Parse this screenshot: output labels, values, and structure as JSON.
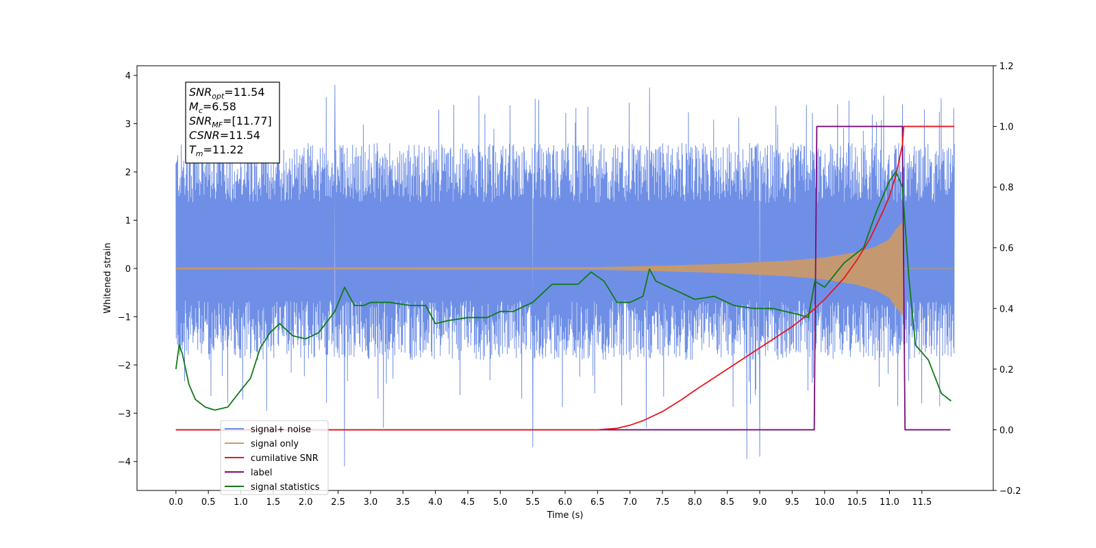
{
  "chart_data": {
    "type": "line",
    "xlabel": "Time (s)",
    "ylabel_left": "Whitened strain",
    "ylabel_right": "",
    "xlim": [
      -0.6,
      12.6
    ],
    "ylim_left": [
      -4.6,
      4.2
    ],
    "ylim_right": [
      -0.2,
      1.2
    ],
    "x_ticks": [
      "0.0",
      "0.5",
      "1.0",
      "1.5",
      "2.0",
      "2.5",
      "3.0",
      "3.5",
      "4.0",
      "4.5",
      "5.0",
      "5.5",
      "6.0",
      "6.5",
      "7.0",
      "7.5",
      "8.0",
      "8.5",
      "9.0",
      "9.5",
      "10.0",
      "10.5",
      "11.0",
      "11.5"
    ],
    "y_ticks_left": [
      "−4",
      "−3",
      "−2",
      "−1",
      "0",
      "1",
      "2",
      "3",
      "4"
    ],
    "y_ticks_right": [
      "−0.2",
      "0.0",
      "0.2",
      "0.4",
      "0.6",
      "0.8",
      "1.0",
      "1.2"
    ],
    "grid": false,
    "legend_placement": "lower-left",
    "annotation": {
      "lines": [
        {
          "main": "SNR",
          "sub": "opt",
          "value": "=11.54"
        },
        {
          "main": "M",
          "sub": "c",
          "value": "=6.58"
        },
        {
          "main": "SNR",
          "sub": "MF",
          "value": "=[11.77]"
        },
        {
          "main": "CSNR",
          "sub": "",
          "value": "=11.54"
        },
        {
          "main": "T",
          "sub": "m",
          "value": "=11.22"
        }
      ]
    },
    "series": [
      {
        "name": "signal+ noise",
        "axis": "left",
        "color": "#6f8fe6",
        "kind": "noise",
        "x_range": [
          0.0,
          12.0
        ],
        "typical_range": [
          -1.9,
          2.6
        ],
        "peaks": [
          [
            2.45,
            3.8
          ],
          [
            7.3,
            3.75
          ],
          [
            6.35,
            3.35
          ],
          [
            10.2,
            3.4
          ],
          [
            11.2,
            3.4
          ],
          [
            2.6,
            -4.1
          ],
          [
            8.8,
            -3.95
          ],
          [
            9.0,
            -3.9
          ],
          [
            5.5,
            -3.7
          ],
          [
            1.4,
            -2.95
          ],
          [
            3.2,
            -3.3
          ],
          [
            7.25,
            -3.3
          ]
        ]
      },
      {
        "name": "signal only",
        "axis": "left",
        "color": "#c89a6a",
        "x_range": [
          0.0,
          12.0
        ],
        "envelope": [
          [
            0.0,
            0.01
          ],
          [
            6.5,
            0.02
          ],
          [
            7.5,
            0.05
          ],
          [
            8.5,
            0.09
          ],
          [
            9.5,
            0.16
          ],
          [
            10.0,
            0.22
          ],
          [
            10.5,
            0.33
          ],
          [
            10.8,
            0.45
          ],
          [
            11.0,
            0.6
          ],
          [
            11.1,
            0.8
          ],
          [
            11.2,
            0.95
          ],
          [
            11.22,
            0.0
          ],
          [
            12.0,
            0.0
          ]
        ]
      },
      {
        "name": "cumilative SNR",
        "axis": "right",
        "color": "#e8141b",
        "points": [
          [
            0.0,
            0.0
          ],
          [
            6.5,
            0.0
          ],
          [
            6.8,
            0.005
          ],
          [
            7.0,
            0.015
          ],
          [
            7.2,
            0.03
          ],
          [
            7.5,
            0.06
          ],
          [
            7.8,
            0.1
          ],
          [
            8.0,
            0.13
          ],
          [
            8.5,
            0.2
          ],
          [
            9.0,
            0.27
          ],
          [
            9.5,
            0.34
          ],
          [
            9.8,
            0.39
          ],
          [
            10.0,
            0.43
          ],
          [
            10.3,
            0.5
          ],
          [
            10.5,
            0.56
          ],
          [
            10.7,
            0.63
          ],
          [
            10.9,
            0.72
          ],
          [
            11.0,
            0.77
          ],
          [
            11.1,
            0.84
          ],
          [
            11.2,
            0.94
          ],
          [
            11.22,
            1.0
          ],
          [
            12.0,
            1.0
          ]
        ]
      },
      {
        "name": "label",
        "axis": "right",
        "color": "#7a0a78",
        "points": [
          [
            0.0,
            0.0
          ],
          [
            9.84,
            0.0
          ],
          [
            9.88,
            1.0
          ],
          [
            11.2,
            1.0
          ],
          [
            11.24,
            0.0
          ],
          [
            11.94,
            0.0
          ]
        ]
      },
      {
        "name": "signal statistics",
        "axis": "right",
        "color": "#0e7a14",
        "points": [
          [
            0.0,
            0.2
          ],
          [
            0.05,
            0.28
          ],
          [
            0.1,
            0.25
          ],
          [
            0.2,
            0.15
          ],
          [
            0.3,
            0.1
          ],
          [
            0.45,
            0.075
          ],
          [
            0.6,
            0.065
          ],
          [
            0.8,
            0.075
          ],
          [
            1.0,
            0.13
          ],
          [
            1.15,
            0.17
          ],
          [
            1.3,
            0.27
          ],
          [
            1.45,
            0.32
          ],
          [
            1.6,
            0.35
          ],
          [
            1.8,
            0.31
          ],
          [
            2.0,
            0.3
          ],
          [
            2.2,
            0.32
          ],
          [
            2.45,
            0.39
          ],
          [
            2.6,
            0.47
          ],
          [
            2.75,
            0.41
          ],
          [
            2.9,
            0.41
          ],
          [
            3.0,
            0.42
          ],
          [
            3.3,
            0.42
          ],
          [
            3.6,
            0.41
          ],
          [
            3.85,
            0.41
          ],
          [
            4.0,
            0.35
          ],
          [
            4.2,
            0.36
          ],
          [
            4.5,
            0.37
          ],
          [
            4.8,
            0.37
          ],
          [
            5.0,
            0.39
          ],
          [
            5.2,
            0.39
          ],
          [
            5.5,
            0.42
          ],
          [
            5.8,
            0.48
          ],
          [
            6.0,
            0.48
          ],
          [
            6.2,
            0.48
          ],
          [
            6.4,
            0.52
          ],
          [
            6.6,
            0.49
          ],
          [
            6.8,
            0.42
          ],
          [
            7.0,
            0.42
          ],
          [
            7.2,
            0.44
          ],
          [
            7.3,
            0.53
          ],
          [
            7.4,
            0.49
          ],
          [
            7.7,
            0.46
          ],
          [
            8.0,
            0.43
          ],
          [
            8.3,
            0.44
          ],
          [
            8.6,
            0.41
          ],
          [
            8.9,
            0.4
          ],
          [
            9.2,
            0.4
          ],
          [
            9.4,
            0.39
          ],
          [
            9.6,
            0.38
          ],
          [
            9.75,
            0.37
          ],
          [
            9.85,
            0.49
          ],
          [
            10.0,
            0.47
          ],
          [
            10.3,
            0.55
          ],
          [
            10.6,
            0.6
          ],
          [
            10.8,
            0.72
          ],
          [
            11.0,
            0.82
          ],
          [
            11.1,
            0.85
          ],
          [
            11.2,
            0.8
          ],
          [
            11.3,
            0.5
          ],
          [
            11.4,
            0.28
          ],
          [
            11.6,
            0.23
          ],
          [
            11.8,
            0.12
          ],
          [
            11.95,
            0.095
          ]
        ]
      }
    ]
  }
}
